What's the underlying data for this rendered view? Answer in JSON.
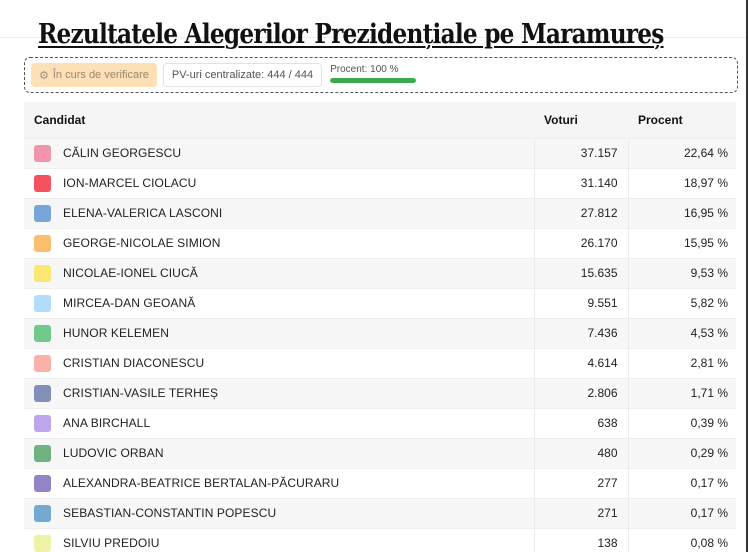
{
  "title": "Rezultatele Alegerilor Prezidențiale pe Maramureș",
  "status": {
    "verify_icon": "gear-check-icon",
    "verify_label": "În curs de verificare",
    "pv_label": "PV-uri centralizate: 444 / 444",
    "progress_label": "Procent: 100 %",
    "progress_percent": 100,
    "progress_color": "#3daa4f"
  },
  "table": {
    "headers": {
      "candidate": "Candidat",
      "votes": "Voturi",
      "percent": "Procent"
    },
    "rows": [
      {
        "name": "CĂLIN GEORGESCU",
        "votes": "37.157",
        "percent": "22,64 %",
        "color": "#f294ac"
      },
      {
        "name": "ION-MARCEL CIOLACU",
        "votes": "31.140",
        "percent": "18,97 %",
        "color": "#f4525e"
      },
      {
        "name": "ELENA-VALERICA LASCONI",
        "votes": "27.812",
        "percent": "16,95 %",
        "color": "#76a6da"
      },
      {
        "name": "GEORGE-NICOLAE SIMION",
        "votes": "26.170",
        "percent": "15,95 %",
        "color": "#f9be6e"
      },
      {
        "name": "NICOLAE-IONEL CIUCĂ",
        "votes": "15.635",
        "percent": "9,53 %",
        "color": "#fbe772"
      },
      {
        "name": "MIRCEA-DAN GEOANĂ",
        "votes": "9.551",
        "percent": "5,82 %",
        "color": "#b3dcf8"
      },
      {
        "name": "HUNOR KELEMEN",
        "votes": "7.436",
        "percent": "4,53 %",
        "color": "#73c98c"
      },
      {
        "name": "CRISTIAN DIACONESCU",
        "votes": "4.614",
        "percent": "2,81 %",
        "color": "#f9b2a7"
      },
      {
        "name": "CRISTIAN-VASILE TERHEȘ",
        "votes": "2.806",
        "percent": "1,71 %",
        "color": "#8290b9"
      },
      {
        "name": "ANA BIRCHALL",
        "votes": "638",
        "percent": "0,39 %",
        "color": "#bea6ef"
      },
      {
        "name": "LUDOVIC ORBAN",
        "votes": "480",
        "percent": "0,29 %",
        "color": "#6fb381"
      },
      {
        "name": "ALEXANDRA-BEATRICE BERTALAN-PĂCURARU",
        "votes": "277",
        "percent": "0,17 %",
        "color": "#9484c8"
      },
      {
        "name": "SEBASTIAN-CONSTANTIN POPESCU",
        "votes": "271",
        "percent": "0,17 %",
        "color": "#74a9d4"
      },
      {
        "name": "SILVIU PREDOIU",
        "votes": "138",
        "percent": "0,08 %",
        "color": "#eef1a6"
      }
    ]
  }
}
